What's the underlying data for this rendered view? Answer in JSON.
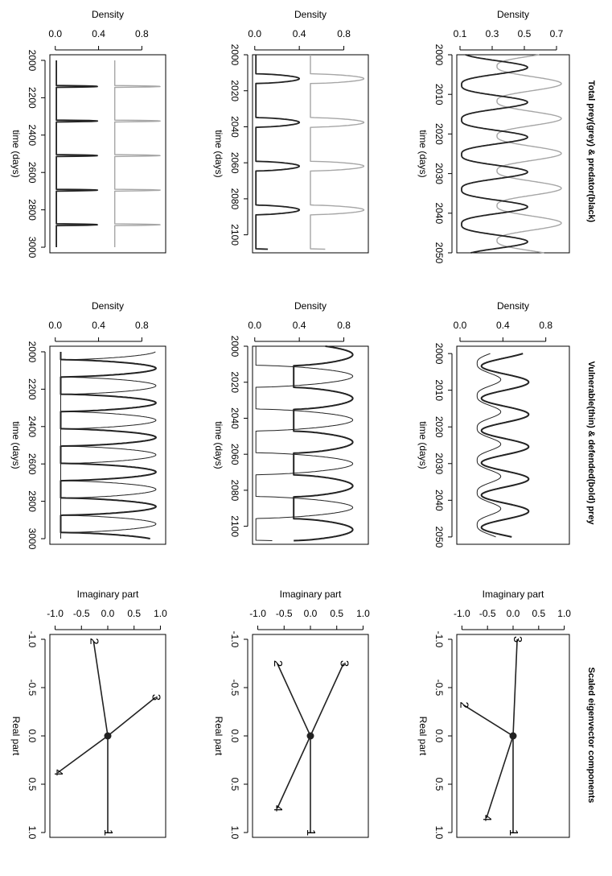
{
  "row_titles": {
    "total": "Total prey(grey) & predator(black)",
    "vulnerable": "Vulnerable(thin) & defended(bold) prey",
    "eigen": "Scaled eigenvector components"
  },
  "colors": {
    "grey": "#a6a6a6",
    "black": "#222222",
    "axis": "#000000"
  },
  "chart_data": [
    {
      "id": "total-1",
      "type": "line",
      "row": "total",
      "column": 1,
      "title": "Total prey(grey) & predator(black)",
      "xlabel": "time (days)",
      "ylabel": "Density",
      "xlim": [
        2000,
        2050
      ],
      "ylim": [
        0.08,
        0.78
      ],
      "xticks": [
        "2000",
        "2010",
        "2020",
        "2030",
        "2040",
        "2050"
      ],
      "yticks": [
        "0.1",
        "0.3",
        "0.5",
        "0.7"
      ],
      "series": [
        {
          "name": "Total prey",
          "color": "grey",
          "width": 1.4,
          "kind": "pulse",
          "base": 0.33,
          "peak": 0.73,
          "period": 8.8,
          "phase": 5.3,
          "sharp": 1.4,
          "x0": 2000,
          "x1": 2050
        },
        {
          "name": "Predator",
          "color": "black",
          "width": 1.8,
          "kind": "pulse",
          "base": 0.11,
          "peak": 0.52,
          "period": 8.8,
          "phase": 1.2,
          "sharp": 1.6,
          "x0": 2000,
          "x1": 2050
        }
      ]
    },
    {
      "id": "total-2",
      "type": "line",
      "row": "total",
      "column": 2,
      "xlabel": "time (days)",
      "ylabel": "Density",
      "xlim": [
        2000,
        2110
      ],
      "ylim": [
        -0.02,
        1.02
      ],
      "xticks": [
        "2000",
        "2020",
        "2040",
        "2060",
        "2080",
        "2100"
      ],
      "yticks": [
        "0.0",
        "0.4",
        "0.8"
      ],
      "series": [
        {
          "name": "Total prey",
          "color": "grey",
          "width": 1.4,
          "kind": "flat",
          "low": 0.5,
          "high": 0.98,
          "period": 24.3,
          "phase": 18,
          "width_frac": 0.22,
          "gap": true,
          "x0": 2000,
          "x1": 2108
        },
        {
          "name": "Predator",
          "color": "black",
          "width": 1.8,
          "kind": "flat",
          "low": 0.01,
          "high": 0.4,
          "period": 24.3,
          "phase": 18,
          "width_frac": 0.22,
          "gap": false,
          "x0": 2000,
          "x1": 2108
        }
      ]
    },
    {
      "id": "total-3",
      "type": "line",
      "row": "total",
      "column": 3,
      "xlabel": "time (days)",
      "ylabel": "Density",
      "xlim": [
        1970,
        3030
      ],
      "ylim": [
        -0.05,
        1.02
      ],
      "xticks": [
        "2000",
        "2200",
        "2400",
        "2600",
        "2800",
        "3000"
      ],
      "yticks": [
        "0.0",
        "0.4",
        "0.8"
      ],
      "series": [
        {
          "name": "Total prey",
          "color": "grey",
          "width": 1.4,
          "kind": "spike",
          "low": 0.55,
          "high": 0.97,
          "period": 185,
          "phase": 100,
          "width_frac": 0.05,
          "gap": true,
          "x0": 2000,
          "x1": 3000
        },
        {
          "name": "Predator",
          "color": "black",
          "width": 1.8,
          "kind": "spike",
          "low": 0.01,
          "high": 0.39,
          "period": 185,
          "phase": 100,
          "width_frac": 0.05,
          "gap": false,
          "x0": 2000,
          "x1": 3000
        }
      ]
    },
    {
      "id": "vuln-1",
      "type": "line",
      "row": "vulnerable",
      "column": 1,
      "xlabel": "time (days)",
      "ylabel": "Density",
      "xlim": [
        1998,
        2052
      ],
      "ylim": [
        -0.03,
        1.02
      ],
      "xticks": [
        "2000",
        "2010",
        "2020",
        "2030",
        "2040",
        "2050"
      ],
      "yticks": [
        "0.0",
        "0.4",
        "0.8"
      ],
      "series": [
        {
          "name": "Vulnerable prey",
          "color": "black",
          "width": 1.0,
          "kind": "pulse",
          "base": 0.16,
          "peak": 0.38,
          "period": 8.8,
          "phase": 5.1,
          "sharp": 1.5,
          "x0": 2000,
          "x1": 2050
        },
        {
          "name": "Defended prey",
          "color": "black",
          "width": 2.0,
          "kind": "wave",
          "base": 0.2,
          "peak": 0.64,
          "period": 8.8,
          "phase": 5.8,
          "sharp": 1.0,
          "x0": 2000,
          "x1": 2050
        }
      ]
    },
    {
      "id": "vuln-2",
      "type": "line",
      "row": "vulnerable",
      "column": 2,
      "xlabel": "time (days)",
      "ylabel": "Density",
      "xlim": [
        2000,
        2110
      ],
      "ylim": [
        -0.02,
        1.02
      ],
      "xticks": [
        "2000",
        "2020",
        "2040",
        "2060",
        "2080",
        "2100"
      ],
      "yticks": [
        "0.0",
        "0.4",
        "0.8"
      ],
      "series": [
        {
          "name": "Vulnerable prey",
          "color": "black",
          "width": 1.0,
          "kind": "flat",
          "low": 0.01,
          "high": 0.88,
          "period": 24.3,
          "phase": 18,
          "width_frac": 0.5,
          "gap": false,
          "x0": 2000,
          "x1": 2108
        },
        {
          "name": "Defended prey",
          "color": "black",
          "width": 2.0,
          "kind": "flat",
          "low": 0.35,
          "high": 0.88,
          "period": 24.3,
          "phase": 6,
          "width_frac": 0.5,
          "gap": false,
          "x0": 2000,
          "x1": 2108
        }
      ]
    },
    {
      "id": "vuln-3",
      "type": "line",
      "row": "vulnerable",
      "column": 3,
      "xlabel": "time (days)",
      "ylabel": "Density",
      "xlim": [
        1970,
        3030
      ],
      "ylim": [
        -0.05,
        1.02
      ],
      "xticks": [
        "2000",
        "2200",
        "2400",
        "2600",
        "2800",
        "3000"
      ],
      "yticks": [
        "0.0",
        "0.4",
        "0.8"
      ],
      "series": [
        {
          "name": "Vulnerable prey",
          "color": "black",
          "width": 1.0,
          "kind": "flat",
          "low": 0.05,
          "high": 0.93,
          "period": 185,
          "phase": 100,
          "width_frac": 0.5,
          "gap": false,
          "x0": 2000,
          "x1": 3000
        },
        {
          "name": "Defended prey",
          "color": "black",
          "width": 2.0,
          "kind": "flat",
          "low": 0.05,
          "high": 0.93,
          "period": 185,
          "phase": 7,
          "width_frac": 0.5,
          "gap": false,
          "x0": 2000,
          "x1": 3000
        }
      ]
    },
    {
      "id": "eigen-1",
      "type": "scatter",
      "row": "eigen",
      "column": 1,
      "xlabel": "Real part",
      "ylabel": "Imaginary part",
      "xlim": [
        -1.05,
        1.05
      ],
      "ylim": [
        -1.1,
        1.1
      ],
      "xticks": [
        "-1.0",
        "-0.5",
        "0.0",
        "0.5",
        "1.0"
      ],
      "yticks": [
        "-1.0",
        "-0.5",
        "0.0",
        "0.5",
        "1.0"
      ],
      "vectors": [
        {
          "label": "1",
          "re": 1.0,
          "im": 0.0
        },
        {
          "label": "2",
          "re": -0.32,
          "im": -0.97
        },
        {
          "label": "3",
          "re": -1.0,
          "im": 0.08
        },
        {
          "label": "4",
          "re": 0.85,
          "im": -0.52
        }
      ]
    },
    {
      "id": "eigen-2",
      "type": "scatter",
      "row": "eigen",
      "column": 2,
      "xlabel": "Real part",
      "ylabel": "Imaginary part",
      "xlim": [
        -1.05,
        1.05
      ],
      "ylim": [
        -1.1,
        1.1
      ],
      "xticks": [
        "-1.0",
        "-0.5",
        "0.0",
        "0.5",
        "1.0"
      ],
      "yticks": [
        "-1.0",
        "-0.5",
        "0.0",
        "0.5",
        "1.0"
      ],
      "vectors": [
        {
          "label": "1",
          "re": 1.0,
          "im": 0.0
        },
        {
          "label": "2",
          "re": -0.75,
          "im": -0.63
        },
        {
          "label": "3",
          "re": -0.75,
          "im": 0.63
        },
        {
          "label": "4",
          "re": 0.75,
          "im": -0.63
        }
      ]
    },
    {
      "id": "eigen-3",
      "type": "scatter",
      "row": "eigen",
      "column": 3,
      "xlabel": "Real part",
      "ylabel": "Imaginary part",
      "xlim": [
        -1.05,
        1.05
      ],
      "ylim": [
        -1.1,
        1.1
      ],
      "xticks": [
        "-1.0",
        "-0.5",
        "0.0",
        "0.5",
        "1.0"
      ],
      "yticks": [
        "-1.0",
        "-0.5",
        "0.0",
        "0.5",
        "1.0"
      ],
      "vectors": [
        {
          "label": "1",
          "re": 1.0,
          "im": 0.0
        },
        {
          "label": "2",
          "re": -0.98,
          "im": -0.27
        },
        {
          "label": "3",
          "re": -0.4,
          "im": 0.91
        },
        {
          "label": "4",
          "re": 0.38,
          "im": -0.95
        }
      ]
    }
  ]
}
